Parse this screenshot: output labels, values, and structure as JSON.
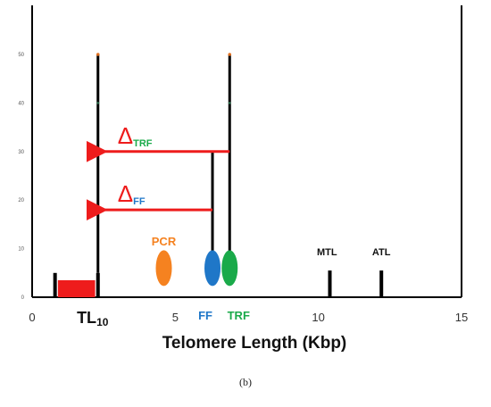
{
  "chart_data": {
    "type": "bar",
    "title": "",
    "xlabel": "Telomere Length (Kbp)",
    "ylabel": "",
    "xlim": [
      0,
      15
    ],
    "ylim": [
      0,
      55
    ],
    "x_ticks": [
      0,
      5,
      10,
      15
    ],
    "y_ticks": [
      0,
      10,
      20,
      30,
      40,
      50
    ],
    "grid": false,
    "bars": [
      {
        "x": 0.8,
        "value": 5
      },
      {
        "x": 2.3,
        "value": 5
      },
      {
        "x": 10.4,
        "value": 5.5
      },
      {
        "x": 12.2,
        "value": 5.5
      }
    ],
    "red_band": {
      "x_start": 0.9,
      "x_end": 2.2,
      "value": 3.5
    },
    "vertical_lines": [
      {
        "x": 2.3,
        "from": 5,
        "to": 50
      },
      {
        "x": 6.3,
        "from": 5,
        "to": 30
      },
      {
        "x": 6.9,
        "from": 5,
        "to": 50
      }
    ],
    "arrows": [
      {
        "label_main": "Δ",
        "label_sub": "TRF",
        "from_x": 6.9,
        "to_x": 2.3,
        "y": 30
      },
      {
        "label_main": "Δ",
        "label_sub": "FF",
        "from_x": 6.3,
        "to_x": 2.3,
        "y": 18
      }
    ],
    "markers": [
      {
        "label": "PCR",
        "x": 4.6,
        "y": 6,
        "color": "#f58220"
      },
      {
        "label": "FF",
        "x": 6.3,
        "y": 6,
        "color": "#1f77c8"
      },
      {
        "label": "TRF",
        "x": 6.9,
        "y": 6,
        "color": "#1aaa4a"
      }
    ],
    "text_labels": [
      {
        "text": "MTL",
        "x": 10.3,
        "y": 9
      },
      {
        "text": "ATL",
        "x": 12.2,
        "y": 9
      }
    ],
    "tl10": {
      "main": "TL",
      "sub": "10",
      "x": 2.3
    }
  },
  "caption": "(b)",
  "colors": {
    "red": "#ee1c1c",
    "arrow": "#ee1c1c",
    "trf_text": "#1aaa4a",
    "ff_text": "#1f77c8",
    "pcr_text": "#f58220",
    "axis": "#000000"
  }
}
